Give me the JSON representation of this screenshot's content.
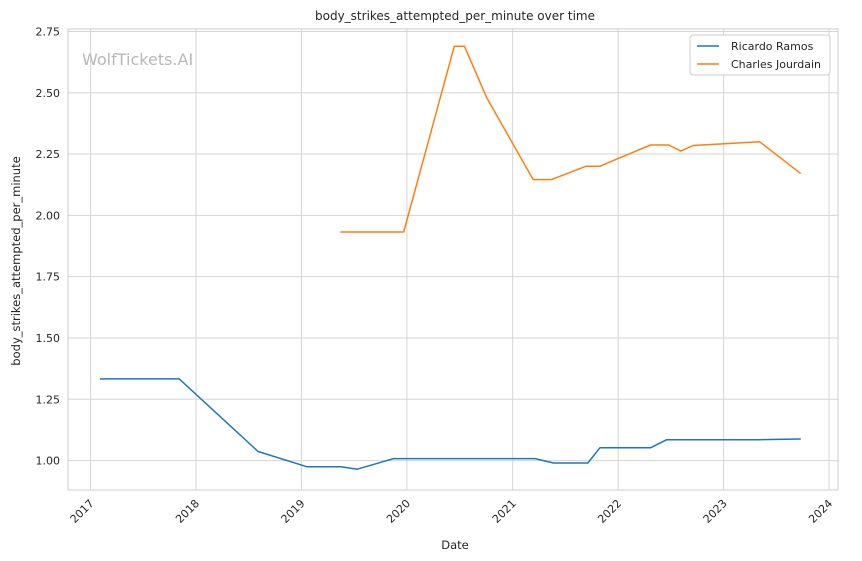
{
  "chart_data": {
    "type": "line",
    "title": "body_strikes_attempted_per_minute over time",
    "xlabel": "Date",
    "ylabel": "body_strikes_attempted_per_minute",
    "watermark": "WolfTickets.AI",
    "x_ticks": [
      "2017",
      "2018",
      "2019",
      "2020",
      "2021",
      "2022",
      "2023",
      "2024"
    ],
    "y_ticks": [
      "1.00",
      "1.25",
      "1.50",
      "1.75",
      "2.00",
      "2.25",
      "2.50",
      "2.75"
    ],
    "xlim": [
      "2016-10-15",
      "2024-02-01"
    ],
    "ylim": [
      0.88,
      2.76
    ],
    "grid": true,
    "legend_position": "top-right",
    "series": [
      {
        "name": "Ricardo Ramos",
        "color": "#1f77b4",
        "points": [
          {
            "x": "2017-02-04",
            "y": 1.333
          },
          {
            "x": "2017-11-04",
            "y": 1.333
          },
          {
            "x": "2018-08-04",
            "y": 1.037
          },
          {
            "x": "2019-01-19",
            "y": 0.975
          },
          {
            "x": "2019-05-18",
            "y": 0.975
          },
          {
            "x": "2019-07-13",
            "y": 0.965
          },
          {
            "x": "2019-11-16",
            "y": 1.008
          },
          {
            "x": "2021-03-20",
            "y": 1.008
          },
          {
            "x": "2021-05-22",
            "y": 0.99
          },
          {
            "x": "2021-09-18",
            "y": 0.99
          },
          {
            "x": "2021-10-30",
            "y": 1.052
          },
          {
            "x": "2022-04-23",
            "y": 1.052
          },
          {
            "x": "2022-06-18",
            "y": 1.085
          },
          {
            "x": "2023-05-06",
            "y": 1.085
          },
          {
            "x": "2023-09-23",
            "y": 1.088
          }
        ]
      },
      {
        "name": "Charles Jourdain",
        "color": "#ff7f0e",
        "points": [
          {
            "x": "2019-05-18",
            "y": 1.932
          },
          {
            "x": "2019-12-21",
            "y": 1.932
          },
          {
            "x": "2020-06-13",
            "y": 2.69
          },
          {
            "x": "2020-07-18",
            "y": 2.69
          },
          {
            "x": "2020-10-03",
            "y": 2.48
          },
          {
            "x": "2021-03-13",
            "y": 2.146
          },
          {
            "x": "2021-05-15",
            "y": 2.146
          },
          {
            "x": "2021-09-11",
            "y": 2.2
          },
          {
            "x": "2021-10-30",
            "y": 2.2
          },
          {
            "x": "2021-12-18",
            "y": 2.225
          },
          {
            "x": "2022-04-23",
            "y": 2.287
          },
          {
            "x": "2022-06-25",
            "y": 2.287
          },
          {
            "x": "2022-08-06",
            "y": 2.262
          },
          {
            "x": "2022-09-17",
            "y": 2.285
          },
          {
            "x": "2023-05-06",
            "y": 2.3
          },
          {
            "x": "2023-09-23",
            "y": 2.172
          }
        ]
      }
    ]
  }
}
